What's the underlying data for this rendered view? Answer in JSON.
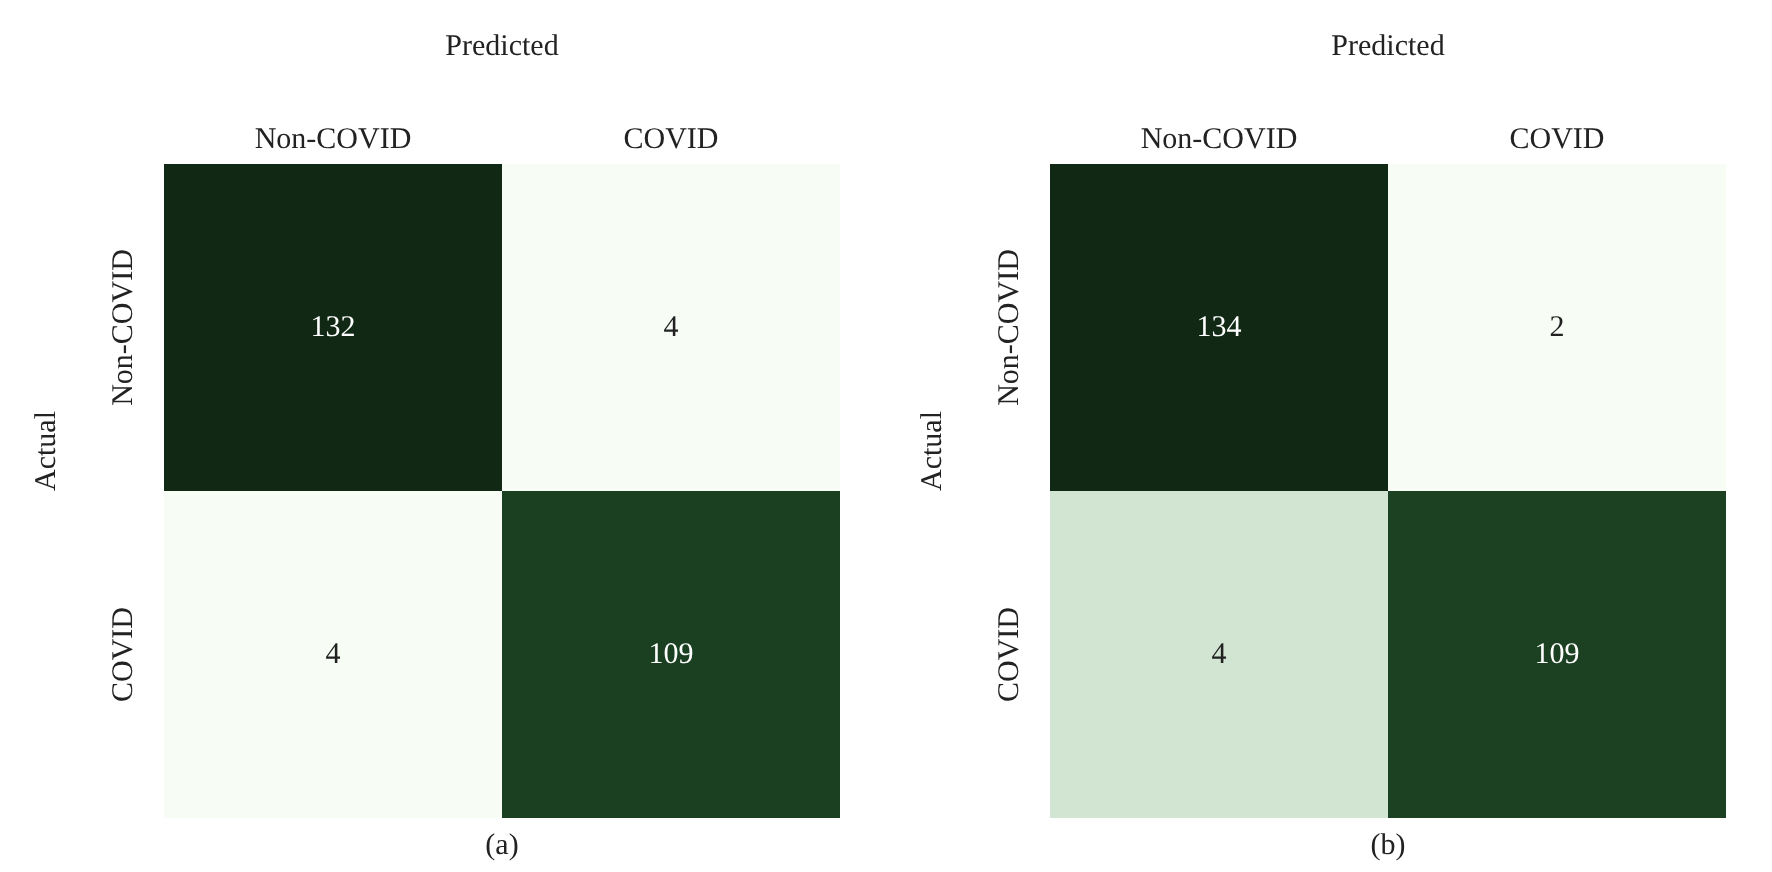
{
  "chart_data": [
    {
      "type": "heatmap",
      "title": "(a)",
      "xlabel": "Predicted",
      "ylabel": "Actual",
      "categories": [
        "Non-COVID",
        "COVID"
      ],
      "y_categories": [
        "Non-COVID",
        "COVID"
      ],
      "cells": [
        [
          132,
          4
        ],
        [
          4,
          109
        ]
      ],
      "data_labels": true
    },
    {
      "type": "heatmap",
      "title": "(b)",
      "xlabel": "Predicted",
      "ylabel": "Actual",
      "categories": [
        "Non-COVID",
        "COVID"
      ],
      "y_categories": [
        "Non-COVID",
        "COVID"
      ],
      "cells": [
        [
          134,
          2
        ],
        [
          4,
          109
        ]
      ],
      "data_labels": true
    }
  ]
}
